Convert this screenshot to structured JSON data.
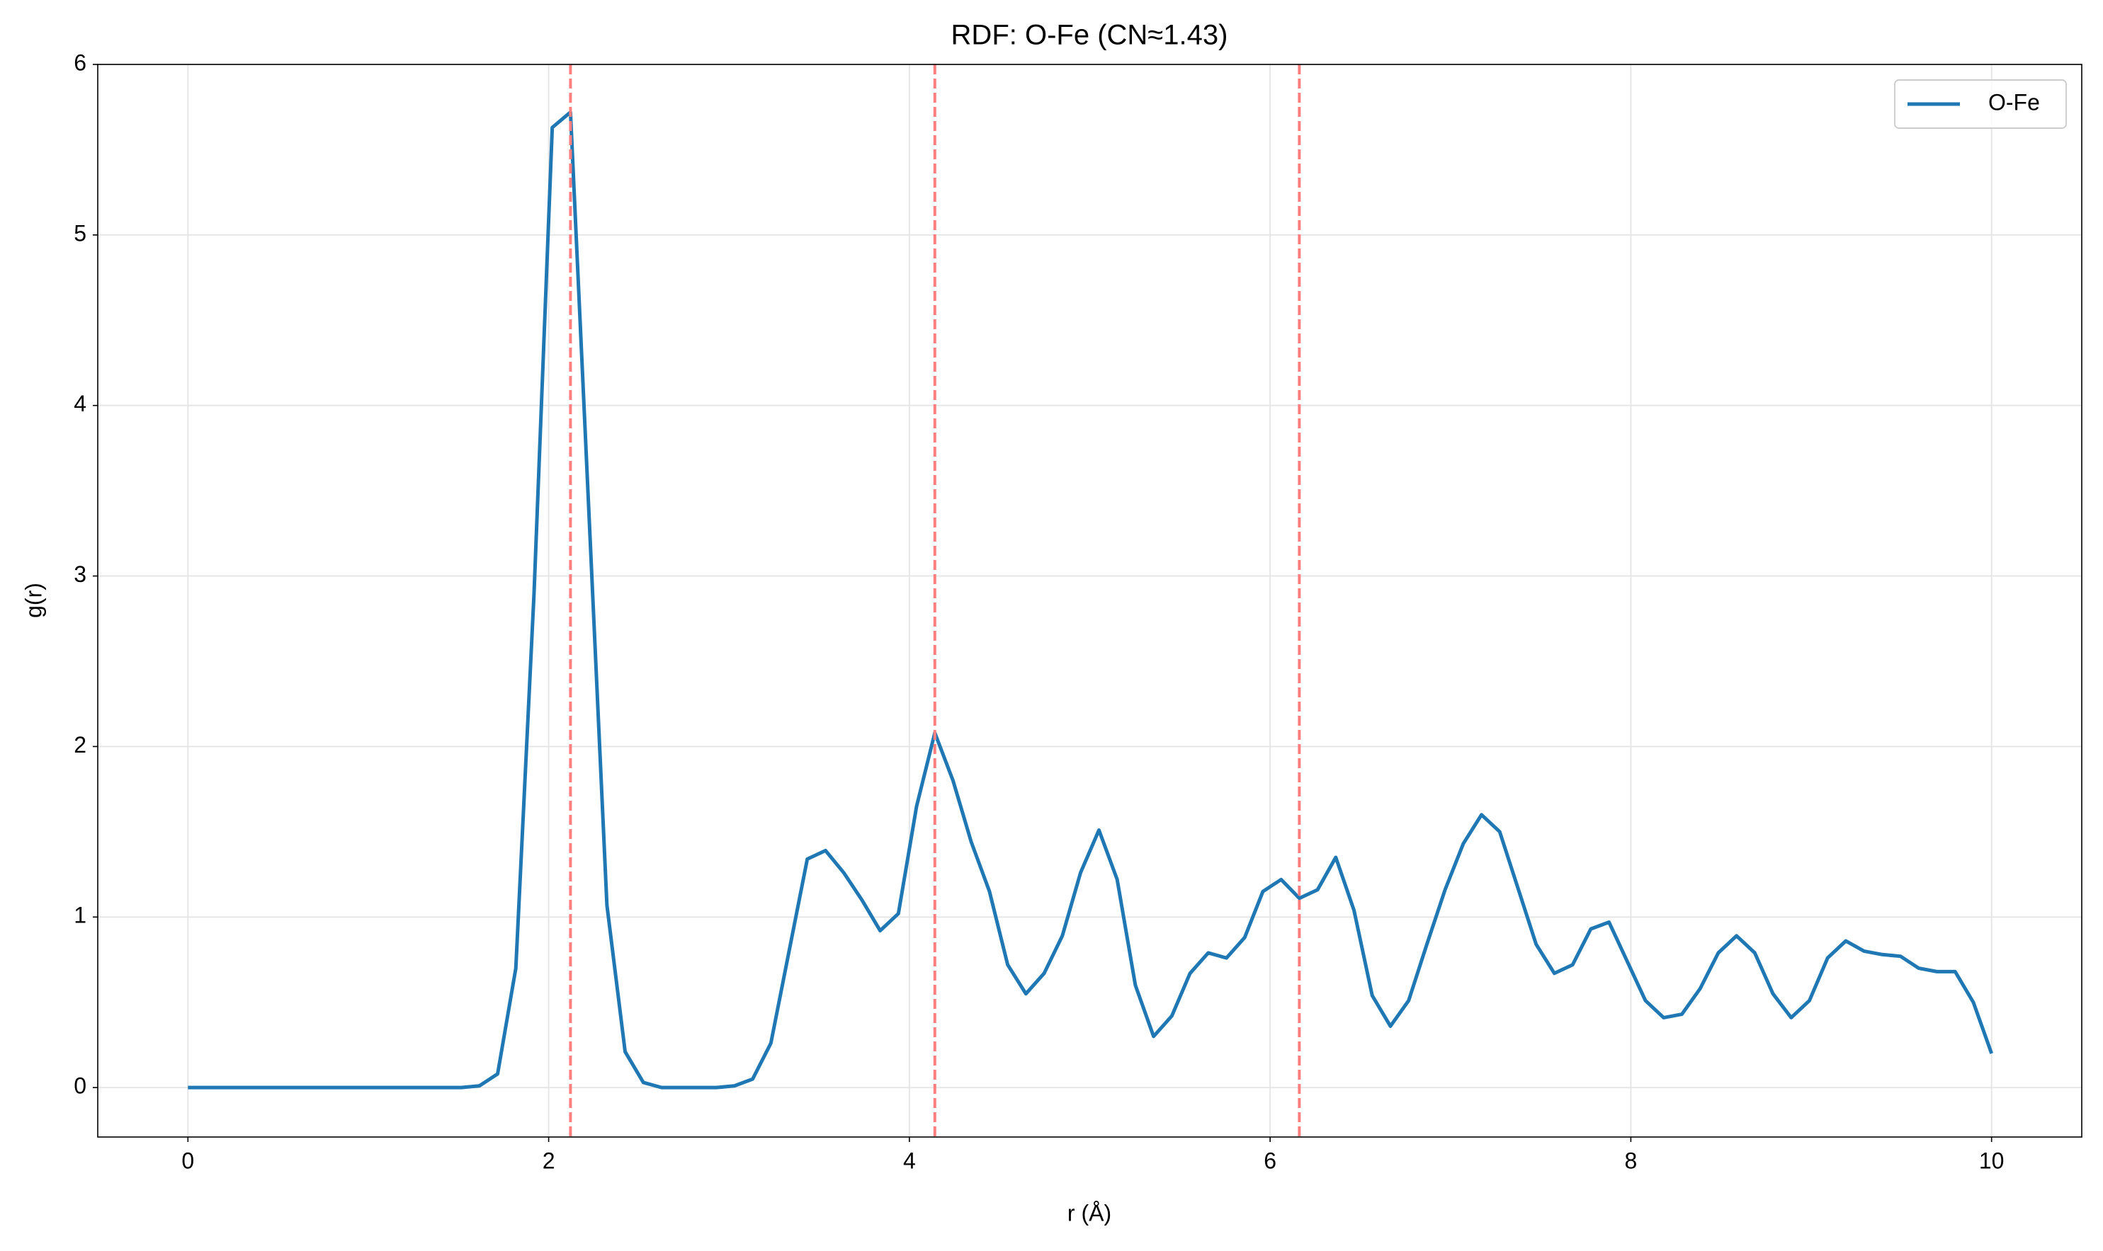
{
  "chart_data": {
    "type": "line",
    "title": "RDF: O-Fe (CN≈1.43)",
    "xlabel": "r (Å)",
    "ylabel": "g(r)",
    "x": [
      0,
      0.101,
      0.202,
      0.303,
      0.404,
      0.505,
      0.606,
      0.707,
      0.808,
      0.909,
      1.01,
      1.111,
      1.212,
      1.313,
      1.414,
      1.515,
      1.616,
      1.717,
      1.818,
      1.919,
      2.02,
      2.121,
      2.222,
      2.323,
      2.424,
      2.525,
      2.626,
      2.727,
      2.828,
      2.929,
      3.03,
      3.131,
      3.232,
      3.333,
      3.434,
      3.535,
      3.636,
      3.737,
      3.838,
      3.939,
      4.04,
      4.141,
      4.242,
      4.343,
      4.444,
      4.545,
      4.646,
      4.747,
      4.848,
      4.949,
      5.051,
      5.152,
      5.253,
      5.354,
      5.455,
      5.556,
      5.657,
      5.758,
      5.859,
      5.96,
      6.061,
      6.162,
      6.263,
      6.364,
      6.465,
      6.566,
      6.667,
      6.768,
      6.869,
      6.97,
      7.071,
      7.172,
      7.273,
      7.374,
      7.475,
      7.576,
      7.677,
      7.778,
      7.879,
      7.98,
      8.081,
      8.182,
      8.283,
      8.384,
      8.485,
      8.586,
      8.687,
      8.788,
      8.889,
      8.99,
      9.091,
      9.192,
      9.293,
      9.394,
      9.495,
      9.596,
      9.697,
      9.798,
      9.899,
      10
    ],
    "series": [
      {
        "name": "O-Fe",
        "color": "#1f77b4",
        "values": [
          0,
          0,
          0,
          0,
          0,
          0,
          0,
          0,
          0,
          0,
          0,
          0,
          0,
          0,
          0,
          0,
          0.01,
          0.08,
          0.7,
          2.9,
          5.63,
          5.72,
          3.4,
          1.07,
          0.21,
          0.03,
          0,
          0,
          0,
          0,
          0.01,
          0.05,
          0.26,
          0.8,
          1.34,
          1.39,
          1.26,
          1.1,
          0.92,
          1.02,
          1.65,
          2.08,
          1.8,
          1.44,
          1.15,
          0.72,
          0.55,
          0.67,
          0.89,
          1.26,
          1.51,
          1.22,
          0.6,
          0.3,
          0.42,
          0.67,
          0.79,
          0.76,
          0.88,
          1.15,
          1.22,
          1.11,
          1.16,
          1.35,
          1.04,
          0.54,
          0.36,
          0.51,
          0.84,
          1.16,
          1.43,
          1.6,
          1.5,
          1.17,
          0.84,
          0.67,
          0.72,
          0.93,
          0.97,
          0.74,
          0.51,
          0.41,
          0.43,
          0.58,
          0.79,
          0.89,
          0.79,
          0.55,
          0.41,
          0.51,
          0.76,
          0.86,
          0.8,
          0.78,
          0.77,
          0.7,
          0.68,
          0.68,
          0.5,
          0.2
        ]
      }
    ],
    "vlines": {
      "values": [
        2.121,
        4.141,
        6.162
      ],
      "color": "#ff7f7f"
    },
    "xlim": [
      -0.5,
      10.5
    ],
    "ylim": [
      -0.29,
      6
    ],
    "xticks": [
      0,
      2,
      4,
      6,
      8,
      10
    ],
    "yticks": [
      0,
      1,
      2,
      3,
      4,
      5,
      6
    ],
    "grid": true,
    "legend": "upper right"
  }
}
